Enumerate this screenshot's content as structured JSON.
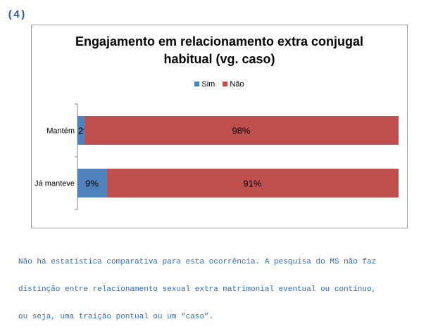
{
  "section_label": "(4)",
  "colors": {
    "sim": "#4f81bd",
    "nao": "#c0504d",
    "note_text": "#2f6db5"
  },
  "chart_data": {
    "type": "bar",
    "orientation": "horizontal",
    "stacked": "percent",
    "title_lines": [
      "Engajamento  em relacionamento  extra conjugal",
      "habitual  (vg. caso)"
    ],
    "categories": [
      "Mantém",
      "Já manteve"
    ],
    "series": [
      {
        "name": "Sim",
        "values": [
          2,
          9
        ],
        "labels": [
          "2%",
          "9%"
        ],
        "color": "#4f81bd"
      },
      {
        "name": "Não",
        "values": [
          98,
          91
        ],
        "labels": [
          "98%",
          "91%"
        ],
        "color": "#c0504d"
      }
    ],
    "legend_position": "top",
    "grid": false
  },
  "note_lines": [
    "Não há estatística comparativa para esta ocorrência. A pesquisa do MS não faz",
    "distinção entre relacionamento sexual extra matrimonial eventual ou contínuo,",
    "ou seja, uma traição pontual ou um “caso”."
  ]
}
